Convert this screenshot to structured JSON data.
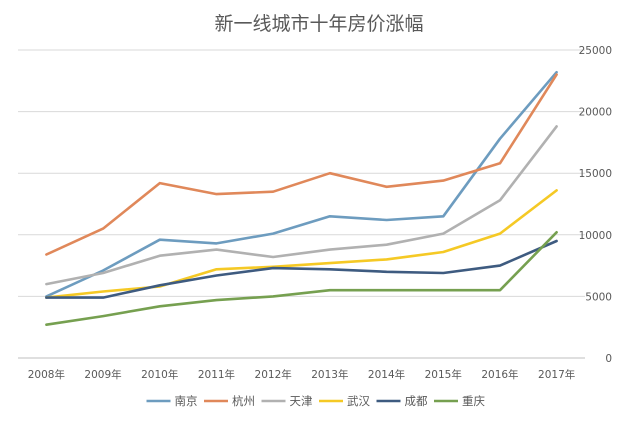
{
  "chart_data": {
    "type": "line",
    "title": "新一线城市十年房价涨幅",
    "xlabel": "",
    "ylabel": "",
    "categories": [
      "2008年",
      "2009年",
      "2010年",
      "2011年",
      "2012年",
      "2013年",
      "2014年",
      "2015年",
      "2016年",
      "2017年"
    ],
    "ylim": [
      0,
      25000
    ],
    "yticks": [
      0,
      5000,
      10000,
      15000,
      20000,
      25000
    ],
    "y_axis_side": "right",
    "grid": true,
    "legend_position": "bottom",
    "series": [
      {
        "name": "南京",
        "color": "#6d9cbf",
        "values": [
          5000,
          7100,
          9600,
          9300,
          10100,
          11500,
          11200,
          11500,
          17800,
          23200
        ]
      },
      {
        "name": "杭州",
        "color": "#e0885a",
        "values": [
          8400,
          10500,
          14200,
          13300,
          13500,
          15000,
          13900,
          14400,
          15800,
          23000
        ]
      },
      {
        "name": "天津",
        "color": "#b1b1b1",
        "values": [
          6000,
          6900,
          8300,
          8800,
          8200,
          8800,
          9200,
          10100,
          12800,
          18800
        ]
      },
      {
        "name": "武汉",
        "color": "#f5c925",
        "values": [
          4900,
          5400,
          5800,
          7200,
          7400,
          7700,
          8000,
          8600,
          10100,
          13600
        ]
      },
      {
        "name": "成都",
        "color": "#3e5b80",
        "values": [
          4900,
          4900,
          5900,
          6700,
          7300,
          7200,
          7000,
          6900,
          7500,
          9500
        ]
      },
      {
        "name": "重庆",
        "color": "#76a050",
        "values": [
          2700,
          3400,
          4200,
          4700,
          5000,
          5500,
          5500,
          5500,
          5500,
          10200
        ]
      }
    ]
  }
}
